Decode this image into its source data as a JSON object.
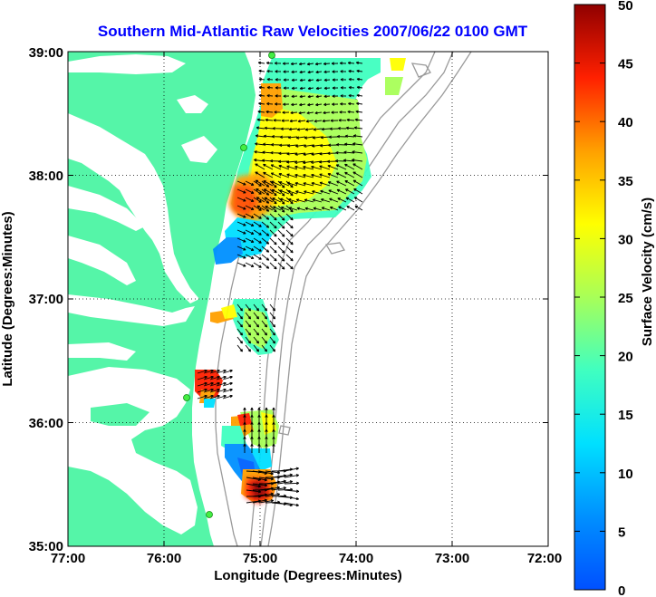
{
  "map": {
    "title": "Southern Mid-Atlantic Raw Velocities 2007/06/22 0100 GMT",
    "title_color": "#0000ff",
    "xlabel": "Longitude (Degrees:Minutes)",
    "ylabel": "Latitude (Degrees:Minutes)",
    "x_ticks": [
      "77:00",
      "76:00",
      "75:00",
      "74:00",
      "73:00",
      "72:00"
    ],
    "y_ticks": [
      "39:00",
      "38:00",
      "37:00",
      "36:00",
      "35:00"
    ],
    "land_color": "#55f5a8",
    "contour_color": "#9a9a9a",
    "station_color": "#44ee44"
  },
  "colorbar": {
    "label": "Surface Velocity (cm/s)",
    "ticks": [
      "50",
      "45",
      "40",
      "35",
      "30",
      "25",
      "20",
      "15",
      "10",
      "5",
      "0"
    ],
    "min": 0,
    "max": 50
  }
}
